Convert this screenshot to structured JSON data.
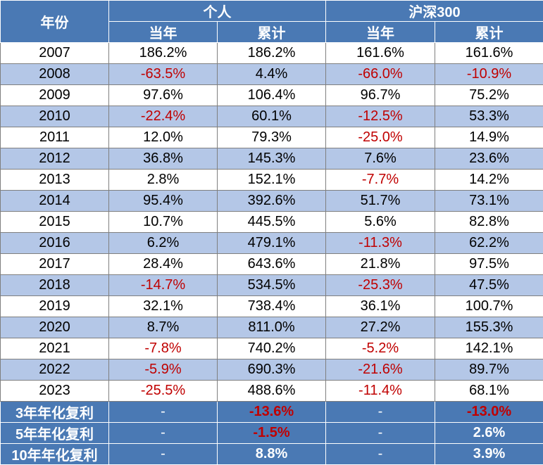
{
  "header": {
    "year_label": "年份",
    "group_personal": "个人",
    "group_index": "沪深300",
    "sub_annual": "当年",
    "sub_cumulative": "累计"
  },
  "rows": [
    {
      "year": "2007",
      "p_annual": "186.2%",
      "p_cum": "186.2%",
      "i_annual": "161.6%",
      "i_cum": "161.6%"
    },
    {
      "year": "2008",
      "p_annual": "-63.5%",
      "p_cum": "4.4%",
      "i_annual": "-66.0%",
      "i_cum": "-10.9%"
    },
    {
      "year": "2009",
      "p_annual": "97.6%",
      "p_cum": "106.4%",
      "i_annual": "96.7%",
      "i_cum": "75.2%"
    },
    {
      "year": "2010",
      "p_annual": "-22.4%",
      "p_cum": "60.1%",
      "i_annual": "-12.5%",
      "i_cum": "53.3%"
    },
    {
      "year": "2011",
      "p_annual": "12.0%",
      "p_cum": "79.3%",
      "i_annual": "-25.0%",
      "i_cum": "14.9%"
    },
    {
      "year": "2012",
      "p_annual": "36.8%",
      "p_cum": "145.3%",
      "i_annual": "7.6%",
      "i_cum": "23.6%"
    },
    {
      "year": "2013",
      "p_annual": "2.8%",
      "p_cum": "152.1%",
      "i_annual": "-7.7%",
      "i_cum": "14.2%"
    },
    {
      "year": "2014",
      "p_annual": "95.4%",
      "p_cum": "392.6%",
      "i_annual": "51.7%",
      "i_cum": "73.1%"
    },
    {
      "year": "2015",
      "p_annual": "10.7%",
      "p_cum": "445.5%",
      "i_annual": "5.6%",
      "i_cum": "82.8%"
    },
    {
      "year": "2016",
      "p_annual": "6.2%",
      "p_cum": "479.1%",
      "i_annual": "-11.3%",
      "i_cum": "62.2%"
    },
    {
      "year": "2017",
      "p_annual": "28.4%",
      "p_cum": "643.6%",
      "i_annual": "21.8%",
      "i_cum": "97.5%"
    },
    {
      "year": "2018",
      "p_annual": "-14.7%",
      "p_cum": "534.5%",
      "i_annual": "-25.3%",
      "i_cum": "47.5%"
    },
    {
      "year": "2019",
      "p_annual": "32.1%",
      "p_cum": "738.4%",
      "i_annual": "36.1%",
      "i_cum": "100.7%"
    },
    {
      "year": "2020",
      "p_annual": "8.7%",
      "p_cum": "811.0%",
      "i_annual": "27.2%",
      "i_cum": "155.3%"
    },
    {
      "year": "2021",
      "p_annual": "-7.8%",
      "p_cum": "740.2%",
      "i_annual": "-5.2%",
      "i_cum": "142.1%"
    },
    {
      "year": "2022",
      "p_annual": "-5.9%",
      "p_cum": "690.3%",
      "i_annual": "-21.6%",
      "i_cum": "89.7%"
    },
    {
      "year": "2023",
      "p_annual": "-25.5%",
      "p_cum": "488.6%",
      "i_annual": "-11.4%",
      "i_cum": "68.1%"
    }
  ],
  "summary": [
    {
      "label": "3年年化复利",
      "p_annual": "-",
      "p_cum": "-13.6%",
      "i_annual": "-",
      "i_cum": "-13.0%"
    },
    {
      "label": "5年年化复利",
      "p_annual": "-",
      "p_cum": "-1.5%",
      "i_annual": "-",
      "i_cum": "2.6%"
    },
    {
      "label": "10年年化复利",
      "p_annual": "-",
      "p_cum": "8.8%",
      "i_annual": "-",
      "i_cum": "3.9%"
    }
  ],
  "colors": {
    "header_bg": "#4a79b4",
    "band_bg": "#b4c7e7",
    "negative": "#c00000"
  }
}
